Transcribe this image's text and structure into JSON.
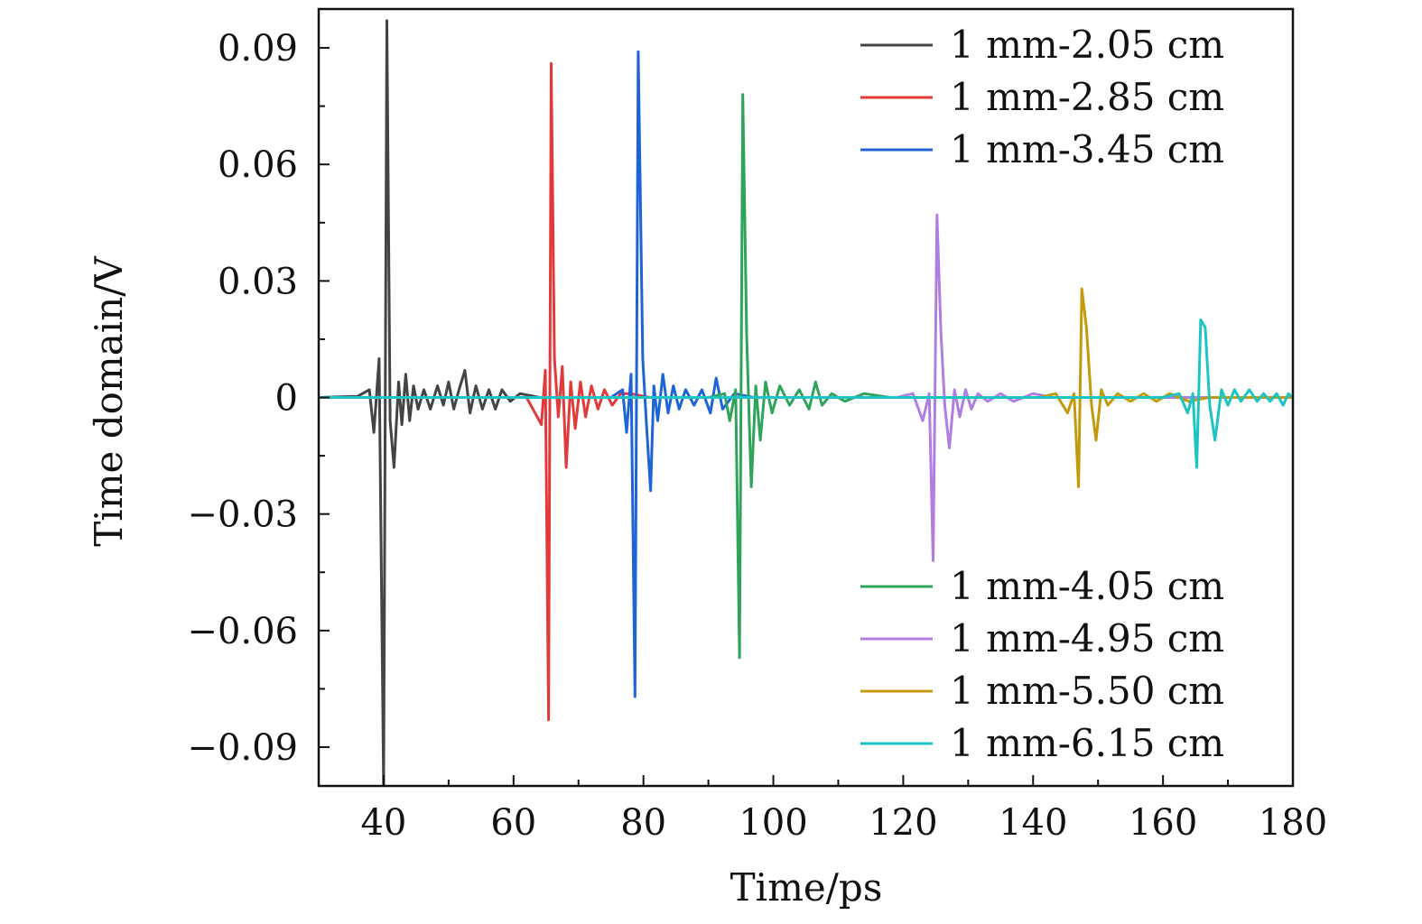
{
  "chart_data": {
    "type": "line",
    "title": "",
    "xlabel": "Time/ps",
    "ylabel": "Time domain/V",
    "xlim": [
      30,
      180
    ],
    "ylim": [
      -0.1,
      0.1
    ],
    "xticks": [
      40,
      60,
      80,
      100,
      120,
      140,
      160,
      180
    ],
    "xtick_labels": [
      "40",
      "60",
      "80",
      "100",
      "120",
      "140",
      "160",
      "180"
    ],
    "yticks": [
      0.09,
      0.06,
      0.03,
      0,
      -0.03,
      -0.06,
      -0.09
    ],
    "ytick_labels": [
      "0.09",
      "0.06",
      "0.03",
      "0",
      "−0.03",
      "−0.06",
      "−0.09"
    ],
    "grid": false,
    "legend_groups": [
      {
        "placement": "top-right",
        "series": [
          0,
          1,
          2
        ]
      },
      {
        "placement": "bottom-right",
        "series": [
          3,
          4,
          5,
          6
        ]
      }
    ],
    "series": [
      {
        "name": "1 mm-2.05 cm",
        "color": "#444444",
        "x": [
          30,
          36,
          37.8,
          38.5,
          39.3,
          40.0,
          40.5,
          41.0,
          41.6,
          42.3,
          42.8,
          43.4,
          44.0,
          44.6,
          45.3,
          46.2,
          47.2,
          48.3,
          49.2,
          50.0,
          50.8,
          51.6,
          52.5,
          53.3,
          54.2,
          55.2,
          56.2,
          57.2,
          58.2,
          59.5,
          61,
          64,
          70,
          180
        ],
        "values": [
          0,
          0.0003,
          0.002,
          -0.009,
          0.01,
          -0.1,
          0.097,
          -0.006,
          -0.018,
          0.004,
          -0.007,
          0.006,
          -0.006,
          0.003,
          -0.003,
          0.002,
          -0.003,
          0.003,
          -0.002,
          0.004,
          -0.003,
          0.002,
          0.007,
          -0.004,
          0.003,
          -0.003,
          0.002,
          -0.003,
          0.002,
          -0.001,
          0.001,
          0,
          0,
          0
        ]
      },
      {
        "name": "1 mm-2.85 cm",
        "color": "#e03a3a",
        "x": [
          30,
          62,
          64.3,
          64.9,
          65.4,
          65.8,
          66.3,
          66.9,
          67.5,
          68.1,
          68.8,
          69.5,
          70.3,
          71.1,
          72.0,
          73.0,
          74.0,
          75.2,
          76.5,
          78,
          81,
          180
        ],
        "values": [
          0,
          0,
          -0.007,
          0.007,
          -0.083,
          0.086,
          0.01,
          -0.005,
          0.008,
          -0.018,
          0.004,
          -0.008,
          0.004,
          -0.005,
          0.003,
          -0.003,
          0.002,
          -0.002,
          0.001,
          0.001,
          0,
          0
        ]
      },
      {
        "name": "1 mm-3.45 cm",
        "color": "#1f64d6",
        "x": [
          30,
          75,
          76.8,
          77.4,
          78.1,
          78.7,
          79.2,
          79.9,
          80.5,
          81.1,
          81.6,
          82.2,
          83.0,
          83.8,
          84.6,
          85.5,
          86.5,
          87.8,
          89.0,
          90.3,
          91.2,
          92.2,
          94,
          97,
          180
        ],
        "values": [
          0,
          0,
          0.002,
          -0.009,
          0.006,
          -0.077,
          0.089,
          0.01,
          -0.008,
          -0.024,
          0.003,
          -0.006,
          0.006,
          -0.004,
          0.003,
          -0.003,
          0.002,
          -0.002,
          0.002,
          -0.004,
          0.005,
          -0.003,
          0.001,
          0,
          0
        ]
      },
      {
        "name": "1 mm-4.05 cm",
        "color": "#2fa35a",
        "x": [
          30,
          90,
          92.5,
          93.3,
          94.2,
          94.8,
          95.3,
          95.9,
          96.6,
          97.3,
          98.0,
          98.8,
          99.8,
          101.0,
          102.5,
          104.0,
          105.5,
          106.5,
          107.5,
          109,
          111,
          114,
          118,
          180
        ],
        "values": [
          0,
          0,
          0.001,
          -0.006,
          0.002,
          -0.067,
          0.078,
          0.016,
          -0.023,
          0.003,
          -0.011,
          0.004,
          -0.004,
          0.003,
          -0.002,
          0.002,
          -0.003,
          0.004,
          -0.002,
          0.001,
          -0.001,
          0.001,
          0,
          0
        ]
      },
      {
        "name": "1 mm-4.95 cm",
        "color": "#b07ee0",
        "x": [
          30,
          119,
          121.5,
          123.0,
          124.0,
          124.6,
          125.2,
          125.8,
          126.4,
          127.1,
          127.9,
          128.7,
          129.6,
          130.5,
          131.5,
          133,
          135,
          137,
          140,
          143,
          180
        ],
        "values": [
          0,
          0,
          0.001,
          -0.006,
          0.001,
          -0.042,
          0.047,
          0.017,
          -0.002,
          -0.013,
          0.002,
          -0.005,
          0.002,
          -0.003,
          0.001,
          -0.001,
          0.001,
          -0.001,
          0.001,
          0,
          0
        ]
      },
      {
        "name": "1 mm-5.50 cm",
        "color": "#c49a0c",
        "x": [
          30,
          141,
          143.5,
          145.3,
          146.3,
          147.0,
          147.5,
          148.2,
          149.0,
          149.7,
          150.5,
          151.5,
          153,
          155,
          157,
          159,
          161,
          164,
          167,
          180
        ],
        "values": [
          0,
          0,
          0.001,
          -0.004,
          0.001,
          -0.023,
          0.028,
          0.018,
          -0.002,
          -0.011,
          0.002,
          -0.002,
          0.001,
          -0.001,
          0.001,
          -0.001,
          0.001,
          -0.001,
          0,
          0
        ]
      },
      {
        "name": "1 mm-6.15 cm",
        "color": "#1ec4c4",
        "x": [
          30,
          160,
          162.5,
          163.8,
          164.6,
          165.2,
          165.8,
          166.5,
          167.2,
          168.0,
          169.0,
          170.0,
          171.0,
          172.0,
          173.3,
          174.5,
          175.5,
          176.5,
          177.5,
          178.5,
          179.3,
          180
        ],
        "values": [
          0,
          0,
          0.001,
          -0.004,
          0.001,
          -0.018,
          0.02,
          0.018,
          -0.002,
          -0.011,
          0.002,
          -0.002,
          0.002,
          -0.001,
          0.002,
          -0.001,
          0.001,
          -0.001,
          0.001,
          -0.002,
          0.001,
          0
        ]
      }
    ]
  }
}
